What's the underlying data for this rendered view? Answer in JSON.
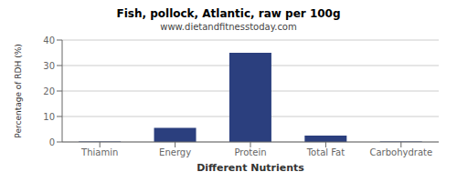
{
  "chart_data": {
    "type": "bar",
    "title": "Fish, pollock, Atlantic, raw per 100g",
    "subtitle": "www.dietandfitnesstoday.com",
    "xlabel": "Different Nutrients",
    "ylabel": "Percentage of RDH (%)",
    "categories": [
      "Thiamin",
      "Energy",
      "Protein",
      "Total Fat",
      "Carbohydrate"
    ],
    "values": [
      0.2,
      5.5,
      35.0,
      2.5,
      0.2
    ],
    "color": "#2b3f7e",
    "ylim": [
      0,
      40
    ],
    "yticks": [
      0,
      10,
      20,
      30,
      40
    ],
    "grid": true
  }
}
